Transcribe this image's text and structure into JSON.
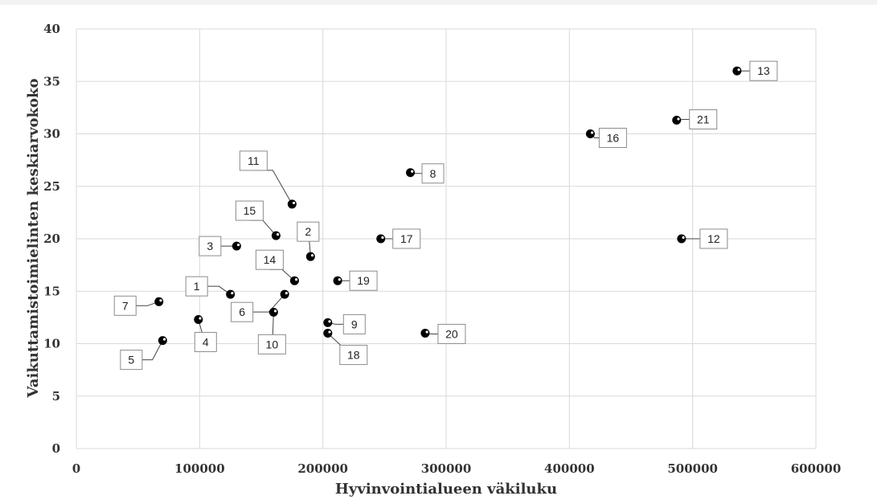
{
  "chart_data": {
    "type": "scatter",
    "title": "",
    "xlabel": "Hyvinvointialueen väkiluku",
    "ylabel": "Vaikuttamistoimielinten keskiarvokoko",
    "xlim": [
      0,
      600000
    ],
    "ylim": [
      0,
      40
    ],
    "x_ticks": [
      0,
      100000,
      200000,
      300000,
      400000,
      500000,
      600000
    ],
    "y_ticks": [
      0,
      5,
      10,
      15,
      20,
      25,
      30,
      35,
      40
    ],
    "grid": true,
    "legend": "none",
    "marker_color": "#000000",
    "points": [
      {
        "label": "1",
        "x": 125000,
        "y": 14.7
      },
      {
        "label": "2",
        "x": 190000,
        "y": 18.3
      },
      {
        "label": "3",
        "x": 130000,
        "y": 19.3
      },
      {
        "label": "4",
        "x": 99000,
        "y": 12.3
      },
      {
        "label": "5",
        "x": 70000,
        "y": 10.3
      },
      {
        "label": "6",
        "x": 169000,
        "y": 14.7
      },
      {
        "label": "7",
        "x": 67000,
        "y": 14.0
      },
      {
        "label": "8",
        "x": 271000,
        "y": 26.3
      },
      {
        "label": "9",
        "x": 204000,
        "y": 12.0
      },
      {
        "label": "10",
        "x": 160000,
        "y": 13.0
      },
      {
        "label": "11",
        "x": 175000,
        "y": 23.3
      },
      {
        "label": "12",
        "x": 491000,
        "y": 20.0
      },
      {
        "label": "13",
        "x": 536000,
        "y": 36.0
      },
      {
        "label": "14",
        "x": 177000,
        "y": 16.0
      },
      {
        "label": "15",
        "x": 162000,
        "y": 20.3
      },
      {
        "label": "16",
        "x": 417000,
        "y": 30.0
      },
      {
        "label": "17",
        "x": 247000,
        "y": 20.0
      },
      {
        "label": "18",
        "x": 204000,
        "y": 11.0
      },
      {
        "label": "19",
        "x": 212000,
        "y": 16.0
      },
      {
        "label": "20",
        "x": 283000,
        "y": 11.0
      },
      {
        "label": "21",
        "x": 487000,
        "y": 31.3
      }
    ]
  }
}
